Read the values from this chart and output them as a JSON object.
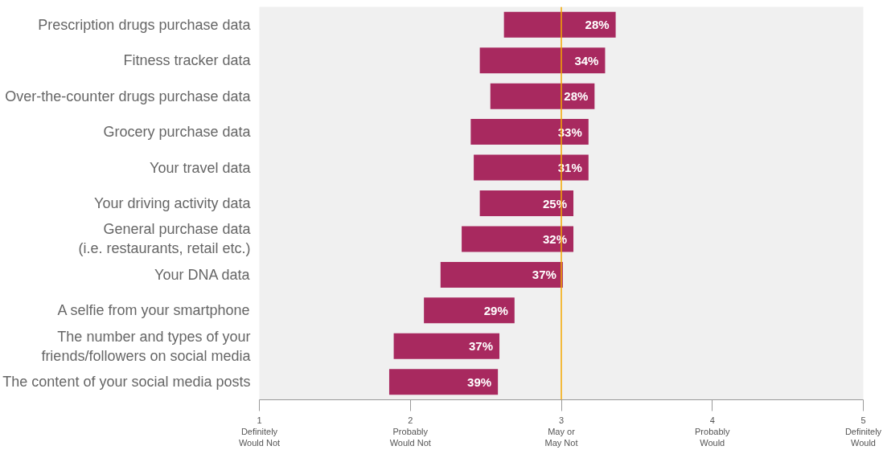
{
  "chart_data": {
    "type": "bar",
    "orientation": "horizontal",
    "categories": [
      "Prescription drugs purchase data",
      "Fitness tracker data",
      "Over-the-counter drugs purchase data",
      "Grocery purchase data",
      "Your travel data",
      "Your driving activity data",
      "General purchase data\n(i.e. restaurants, retail etc.)",
      "Your DNA data",
      "A selfie from your smartphone",
      "The number and types of your\nfriends/followers on social media",
      "The content of your social media posts"
    ],
    "base": [
      2.62,
      2.46,
      2.53,
      2.4,
      2.42,
      2.46,
      2.34,
      2.2,
      2.09,
      1.89,
      1.86
    ],
    "values": [
      0.74,
      0.83,
      0.69,
      0.78,
      0.76,
      0.62,
      0.74,
      0.81,
      0.6,
      0.7,
      0.72
    ],
    "annotations": [
      {
        "text": "28%",
        "x": 3.36,
        "y": "Prescription drugs purchase data"
      },
      {
        "text": "34%",
        "x": 3.29,
        "y": "Fitness tracker data"
      },
      {
        "text": "28%",
        "x": 3.22,
        "y": "Over-the-counter drugs purchase data"
      },
      {
        "text": "33%",
        "x": 3.18,
        "y": "Grocery purchase data"
      },
      {
        "text": "31%",
        "x": 3.18,
        "y": "Your travel data"
      },
      {
        "text": "25%",
        "x": 3.08,
        "y": "Your driving activity data"
      },
      {
        "text": "32%",
        "x": 3.08,
        "y": "General purchase data\n(i.e. restaurants, retail etc.)"
      },
      {
        "text": "37%",
        "x": 3.01,
        "y": "Your DNA data"
      },
      {
        "text": "29%",
        "x": 2.69,
        "y": "A selfie from your smartphone"
      },
      {
        "text": "37%",
        "x": 2.59,
        "y": "The number and types of your\nfriends/followers on social media"
      },
      {
        "text": "39%",
        "x": 2.58,
        "y": "The content of your social media posts"
      }
    ],
    "color": "#a8295f",
    "xlim": [
      1,
      5
    ],
    "xticks": [
      {
        "value": 1,
        "label": "1\nDefinitely\nWould Not"
      },
      {
        "value": 2,
        "label": "2\nProbably\nWould Not"
      },
      {
        "value": 3,
        "label": "3\nMay or\nMay Not"
      },
      {
        "value": 4,
        "label": "4\nProbably\nWould"
      },
      {
        "value": 5,
        "label": "5\nDefinitely\nWould"
      }
    ],
    "ref_lines": [
      {
        "axis": "x",
        "value": 3,
        "color": "#f5a800"
      }
    ]
  }
}
